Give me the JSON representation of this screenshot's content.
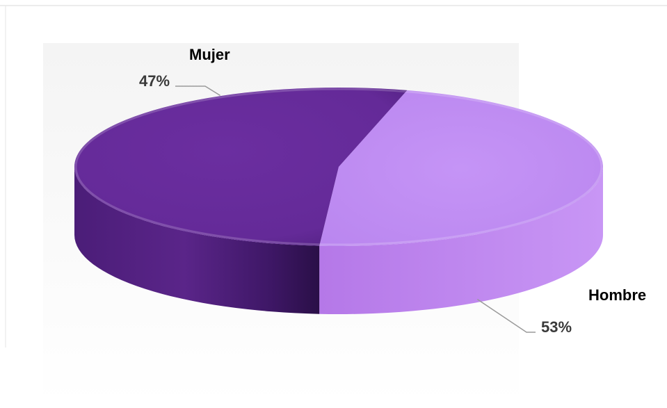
{
  "chart_data": {
    "type": "pie",
    "style": "3d",
    "categories": [
      "Mujer",
      "Hombre"
    ],
    "values": [
      47,
      53
    ],
    "labels": [
      "47%",
      "53%"
    ],
    "colors": [
      "#c08cf2",
      "#5e2590"
    ],
    "title": "",
    "legend": "none"
  }
}
